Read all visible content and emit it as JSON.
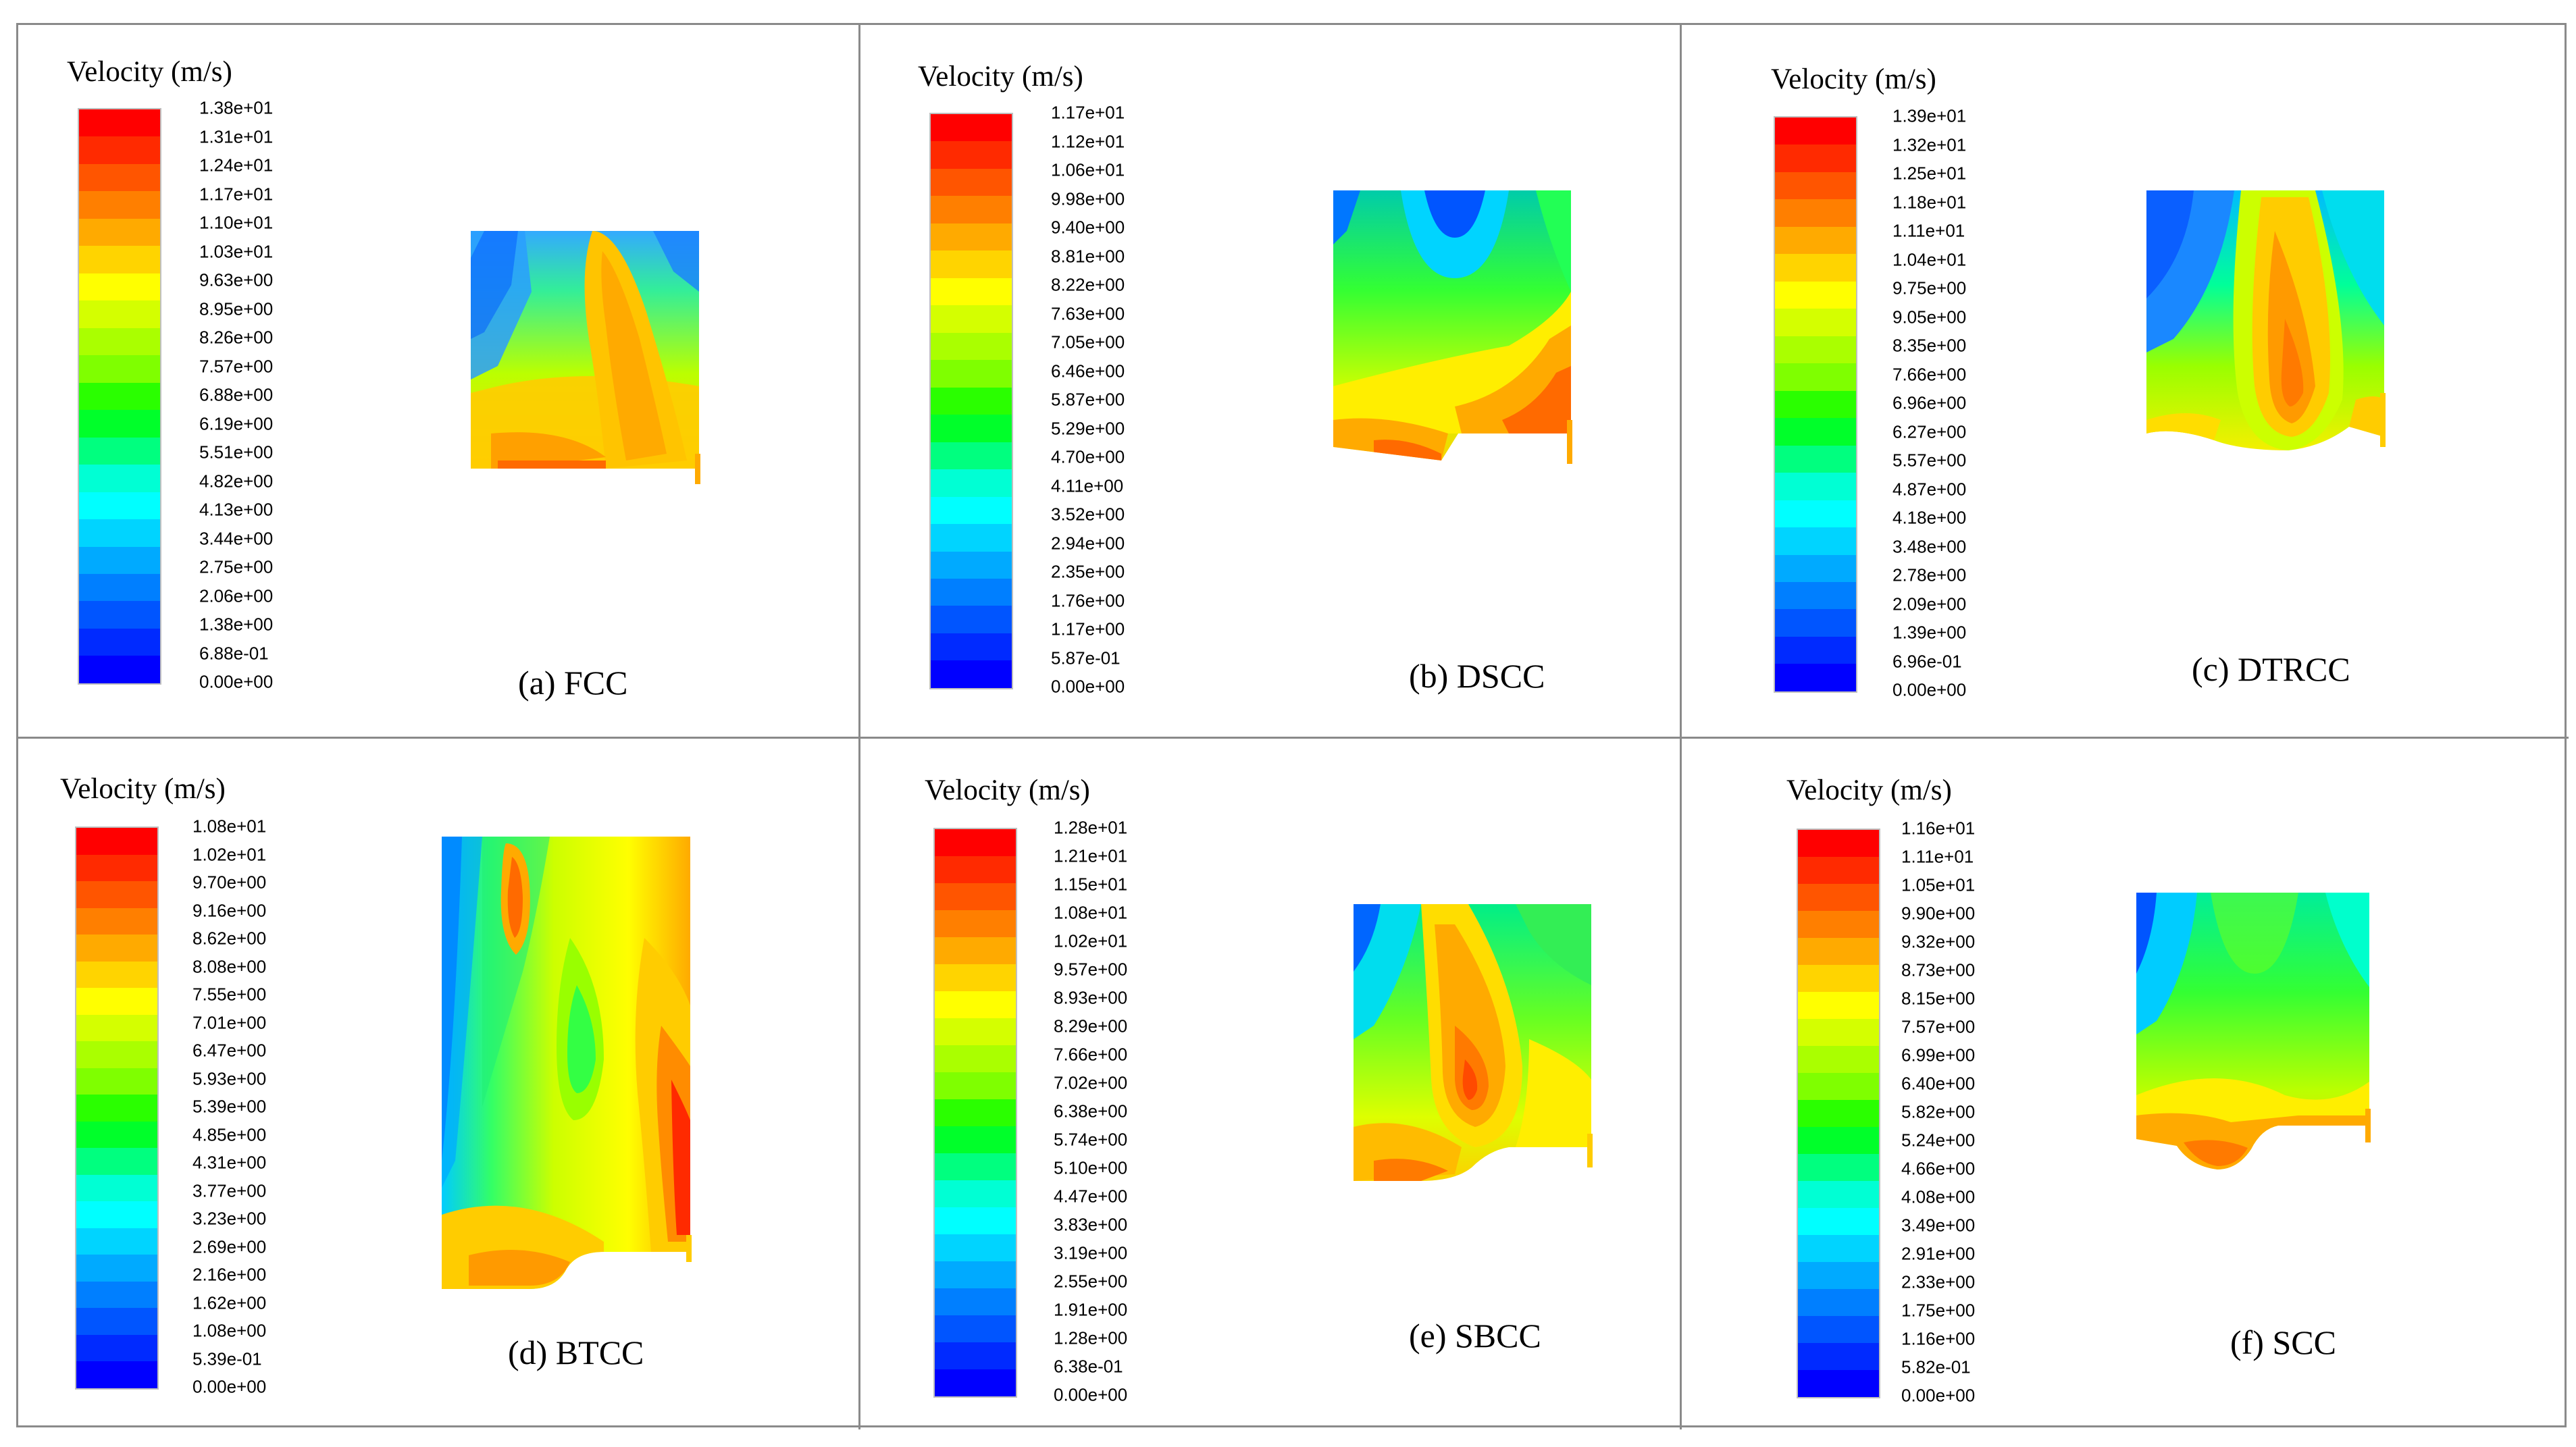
{
  "legend_title": "Velocity (m/s)",
  "colormap": [
    "#ff0000",
    "#ff2a00",
    "#ff5500",
    "#ff7f00",
    "#ffaa00",
    "#ffd400",
    "#ffff00",
    "#d4ff00",
    "#aaff00",
    "#7fff00",
    "#2aff00",
    "#00ff2a",
    "#00ff7f",
    "#00ffd4",
    "#00ffff",
    "#00d4ff",
    "#00aaff",
    "#007fff",
    "#0055ff",
    "#002aff",
    "#0000ff"
  ],
  "panels": [
    {
      "caption": "(a) FCC",
      "ticks": [
        "1.38e+01",
        "1.31e+01",
        "1.24e+01",
        "1.17e+01",
        "1.10e+01",
        "1.03e+01",
        "9.63e+00",
        "8.95e+00",
        "8.26e+00",
        "7.57e+00",
        "6.88e+00",
        "6.19e+00",
        "5.51e+00",
        "4.82e+00",
        "4.13e+00",
        "3.44e+00",
        "2.75e+00",
        "2.06e+00",
        "1.38e+00",
        "6.88e-01",
        "0.00e+00"
      ]
    },
    {
      "caption": "(b) DSCC",
      "ticks": [
        "1.17e+01",
        "1.12e+01",
        "1.06e+01",
        "9.98e+00",
        "9.40e+00",
        "8.81e+00",
        "8.22e+00",
        "7.63e+00",
        "7.05e+00",
        "6.46e+00",
        "5.87e+00",
        "5.29e+00",
        "4.70e+00",
        "4.11e+00",
        "3.52e+00",
        "2.94e+00",
        "2.35e+00",
        "1.76e+00",
        "1.17e+00",
        "5.87e-01",
        "0.00e+00"
      ]
    },
    {
      "caption": "(c) DTRCC",
      "ticks": [
        "1.39e+01",
        "1.32e+01",
        "1.25e+01",
        "1.18e+01",
        "1.11e+01",
        "1.04e+01",
        "9.75e+00",
        "9.05e+00",
        "8.35e+00",
        "7.66e+00",
        "6.96e+00",
        "6.27e+00",
        "5.57e+00",
        "4.87e+00",
        "4.18e+00",
        "3.48e+00",
        "2.78e+00",
        "2.09e+00",
        "1.39e+00",
        "6.96e-01",
        "0.00e+00"
      ]
    },
    {
      "caption": "(d) BTCC",
      "ticks": [
        "1.08e+01",
        "1.02e+01",
        "9.70e+00",
        "9.16e+00",
        "8.62e+00",
        "8.08e+00",
        "7.55e+00",
        "7.01e+00",
        "6.47e+00",
        "5.93e+00",
        "5.39e+00",
        "4.85e+00",
        "4.31e+00",
        "3.77e+00",
        "3.23e+00",
        "2.69e+00",
        "2.16e+00",
        "1.62e+00",
        "1.08e+00",
        "5.39e-01",
        "0.00e+00"
      ]
    },
    {
      "caption": "(e) SBCC",
      "ticks": [
        "1.28e+01",
        "1.21e+01",
        "1.15e+01",
        "1.08e+01",
        "1.02e+01",
        "9.57e+00",
        "8.93e+00",
        "8.29e+00",
        "7.66e+00",
        "7.02e+00",
        "6.38e+00",
        "5.74e+00",
        "5.10e+00",
        "4.47e+00",
        "3.83e+00",
        "3.19e+00",
        "2.55e+00",
        "1.91e+00",
        "1.28e+00",
        "6.38e-01",
        "0.00e+00"
      ]
    },
    {
      "caption": "(f) SCC",
      "ticks": [
        "1.16e+01",
        "1.11e+01",
        "1.05e+01",
        "9.90e+00",
        "9.32e+00",
        "8.73e+00",
        "8.15e+00",
        "7.57e+00",
        "6.99e+00",
        "6.40e+00",
        "5.82e+00",
        "5.24e+00",
        "4.66e+00",
        "4.08e+00",
        "3.49e+00",
        "2.91e+00",
        "2.33e+00",
        "1.75e+00",
        "1.16e+00",
        "5.82e-01",
        "0.00e+00"
      ]
    }
  ]
}
